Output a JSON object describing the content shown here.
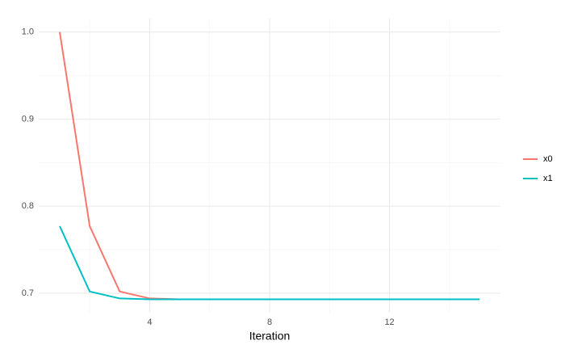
{
  "chart_data": {
    "type": "line",
    "x_label": "Iteration",
    "x": [
      1,
      2,
      3,
      4,
      5,
      6,
      7,
      8,
      9,
      10,
      11,
      12,
      13,
      14,
      15
    ],
    "series": [
      {
        "name": "x0",
        "color": "#F8766D",
        "values": [
          1.0,
          0.777,
          0.702,
          0.694,
          0.693,
          0.693,
          0.693,
          0.693,
          0.693,
          0.693,
          0.693,
          0.693,
          0.693,
          0.693,
          0.693
        ]
      },
      {
        "name": "x1",
        "color": "#00BFC4",
        "values": [
          0.777,
          0.702,
          0.694,
          0.693,
          0.693,
          0.693,
          0.693,
          0.693,
          0.693,
          0.693,
          0.693,
          0.693,
          0.693,
          0.693,
          0.693
        ]
      }
    ],
    "xlim": [
      0.3,
      15.7
    ],
    "xticks": [
      4,
      8,
      12
    ],
    "x_minor_ticks": [
      2,
      6,
      10,
      14
    ],
    "ylim": [
      0.6777,
      1.0154
    ],
    "yticks": [
      0.7,
      0.8,
      0.9,
      {
        "value": 1,
        "label": "1.0"
      }
    ],
    "y_minor_ticks": [
      0.75,
      0.85,
      0.95
    ],
    "grid": true,
    "legend": "right"
  }
}
